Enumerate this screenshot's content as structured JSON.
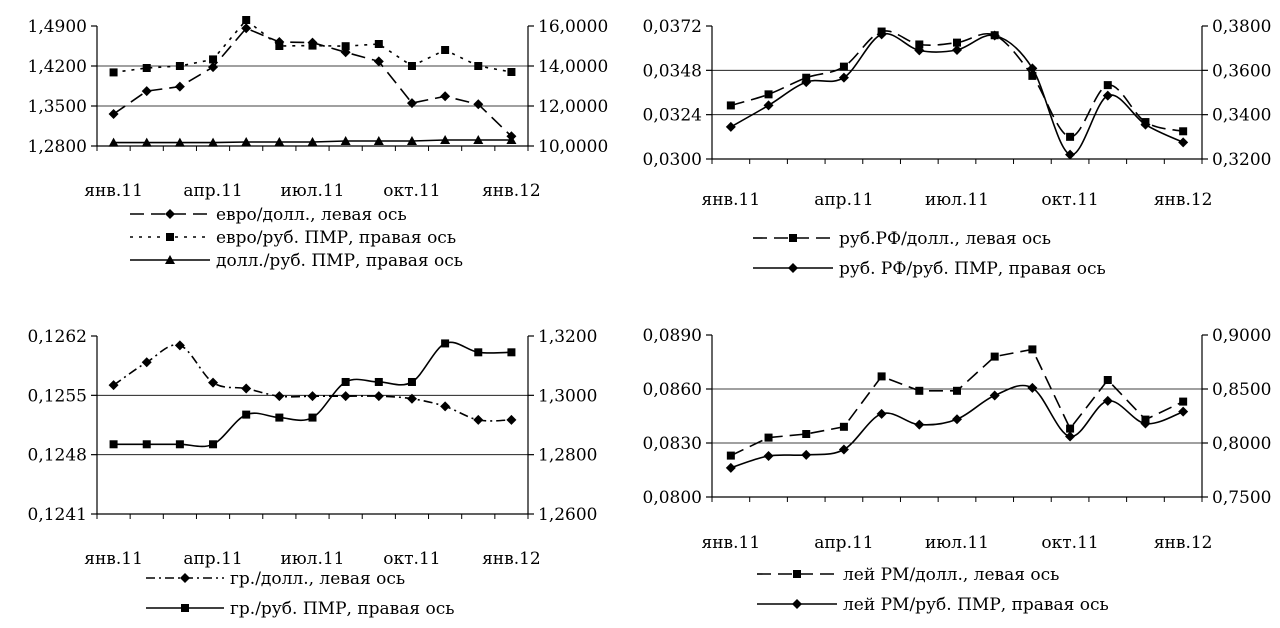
{
  "chart_data": [
    {
      "type": "line",
      "title": "",
      "x_labels": [
        "янв.11",
        "апр.11",
        "июл.11",
        "окт.11",
        "янв.12"
      ],
      "left_axis": {
        "min": 1.28,
        "max": 1.49,
        "ticks": [
          "1,2800",
          "1,3500",
          "1,4200",
          "1,4900"
        ]
      },
      "right_axis": {
        "min": 10,
        "max": 16,
        "ticks": [
          "10,0000",
          "12,0000",
          "14,0000",
          "16,0000"
        ]
      },
      "gridlines_left": [
        1.35,
        1.42
      ],
      "series": [
        {
          "name": "евро/долл., левая ось",
          "axis": "left",
          "marker": "diamond",
          "dash": "long",
          "smooth": false,
          "values": [
            1.336,
            1.376,
            1.384,
            1.418,
            1.486,
            1.462,
            1.461,
            1.444,
            1.428,
            1.355,
            1.367,
            1.353,
            1.297
          ]
        },
        {
          "name": "евро/руб. ПМР, правая ось",
          "axis": "right",
          "marker": "square",
          "dash": "dot",
          "smooth": false,
          "values": [
            13.68,
            13.9,
            14.0,
            14.33,
            16.3,
            15.0,
            15.02,
            14.99,
            15.1,
            14.0,
            14.8,
            14.0,
            13.7
          ]
        },
        {
          "name": "долл./руб. ПМР, правая ось",
          "axis": "right",
          "marker": "triangle",
          "dash": "solid",
          "smooth": false,
          "values": [
            10.17,
            10.17,
            10.17,
            10.17,
            10.2,
            10.2,
            10.2,
            10.25,
            10.25,
            10.25,
            10.3,
            10.3,
            10.3
          ]
        }
      ]
    },
    {
      "type": "line",
      "title": "",
      "x_labels": [
        "янв.11",
        "апр.11",
        "июл.11",
        "окт.11",
        "янв.12"
      ],
      "left_axis": {
        "min": 0.03,
        "max": 0.0372,
        "ticks": [
          "0,0300",
          "0,0324",
          "0,0348",
          "0,0372"
        ]
      },
      "right_axis": {
        "min": 0.32,
        "max": 0.38,
        "ticks": [
          "0,3200",
          "0,3400",
          "0,3600",
          "0,3800"
        ]
      },
      "gridlines_left": [
        0.0324,
        0.0348
      ],
      "series": [
        {
          "name": "руб.РФ/долл., левая ось",
          "axis": "left",
          "marker": "square",
          "dash": "long",
          "smooth": true,
          "values": [
            0.0329,
            0.0335,
            0.0344,
            0.035,
            0.0369,
            0.0362,
            0.0363,
            0.0367,
            0.0345,
            0.0312,
            0.034,
            0.032,
            0.0315
          ]
        },
        {
          "name": "руб. РФ/руб. ПМР, правая ось",
          "axis": "right",
          "marker": "diamond",
          "dash": "solid",
          "smooth": true,
          "values": [
            0.3345,
            0.3442,
            0.3547,
            0.3567,
            0.3762,
            0.369,
            0.3692,
            0.3757,
            0.3609,
            0.322,
            0.3486,
            0.3355,
            0.3275
          ]
        }
      ]
    },
    {
      "type": "line",
      "title": "",
      "x_labels": [
        "янв.11",
        "апр.11",
        "июл.11",
        "окт.11",
        "янв.12"
      ],
      "left_axis": {
        "min": 0.1241,
        "max": 0.1262,
        "ticks": [
          "0,1241",
          "0,1248",
          "0,1255",
          "0,1262"
        ]
      },
      "right_axis": {
        "min": 1.26,
        "max": 1.32,
        "ticks": [
          "1,2600",
          "1,2800",
          "1,3000",
          "1,3200"
        ]
      },
      "gridlines_left": [
        0.1248,
        0.1255
      ],
      "series": [
        {
          "name": "гр./долл., левая ось",
          "axis": "left",
          "marker": "diamond",
          "dash": "dashdot",
          "smooth": true,
          "values": [
            0.12562,
            0.12589,
            0.12609,
            0.12565,
            0.12558,
            0.12549,
            0.12549,
            0.12549,
            0.12549,
            0.12546,
            0.12537,
            0.12521,
            0.12521
          ]
        },
        {
          "name": "гр./руб. ПМР, правая ось",
          "axis": "right",
          "marker": "square",
          "dash": "solid",
          "smooth": true,
          "values": [
            1.2835,
            1.2835,
            1.2835,
            1.2835,
            1.2935,
            1.2925,
            1.2925,
            1.3045,
            1.3045,
            1.3045,
            1.3175,
            1.3145,
            1.3145
          ]
        }
      ]
    },
    {
      "type": "line",
      "title": "",
      "x_labels": [
        "янв.11",
        "апр.11",
        "июл.11",
        "окт.11",
        "янв.12"
      ],
      "left_axis": {
        "min": 0.08,
        "max": 0.089,
        "ticks": [
          "0,0800",
          "0,0830",
          "0,0860",
          "0,0890"
        ]
      },
      "right_axis": {
        "min": 0.75,
        "max": 0.9,
        "ticks": [
          "0,7500",
          "0,8000",
          "0,8500",
          "0,9000"
        ]
      },
      "gridlines_left": [
        0.083,
        0.086
      ],
      "series": [
        {
          "name": "лей РМ/долл., левая ось",
          "axis": "left",
          "marker": "square",
          "dash": "long",
          "smooth": false,
          "values": [
            0.0823,
            0.0833,
            0.0835,
            0.0839,
            0.0867,
            0.0859,
            0.0859,
            0.0878,
            0.0882,
            0.0838,
            0.0865,
            0.0843,
            0.0853
          ]
        },
        {
          "name": "лей РМ/руб. ПМР, правая ось",
          "axis": "right",
          "marker": "diamond",
          "dash": "solid",
          "smooth": true,
          "values": [
            0.777,
            0.788,
            0.789,
            0.794,
            0.827,
            0.817,
            0.822,
            0.844,
            0.851,
            0.806,
            0.839,
            0.818,
            0.829
          ]
        }
      ]
    }
  ]
}
